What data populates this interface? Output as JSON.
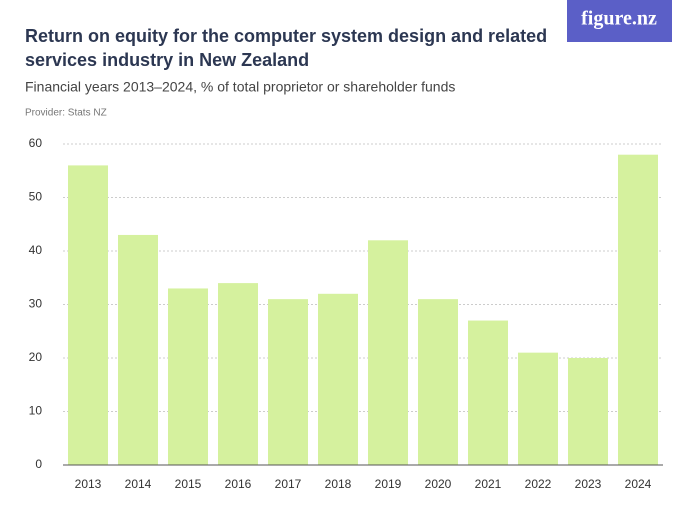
{
  "logo": "figure.nz",
  "chart_data": {
    "type": "bar",
    "title": "Return on equity for the computer system design and related services industry in New Zealand",
    "subtitle": "Financial years 2013–2024, % of total proprietor or shareholder funds",
    "provider": "Provider: Stats NZ",
    "categories": [
      "2013",
      "2014",
      "2015",
      "2016",
      "2017",
      "2018",
      "2019",
      "2020",
      "2021",
      "2022",
      "2023",
      "2024"
    ],
    "values": [
      56,
      43,
      33,
      34,
      31,
      32,
      42,
      31,
      27,
      21,
      20,
      58
    ],
    "color": "#d5f19e",
    "ylim": [
      0,
      60
    ],
    "yticks": [
      0,
      10,
      20,
      30,
      40,
      50,
      60
    ],
    "grid": true
  }
}
